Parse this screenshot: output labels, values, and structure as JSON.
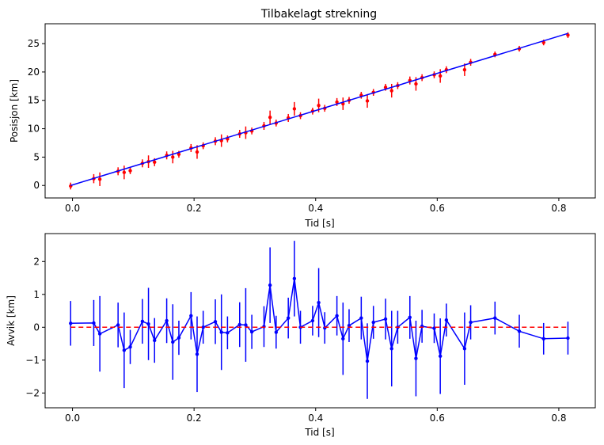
{
  "chart_data": [
    {
      "type": "scatter",
      "title": "Tilbakelagt strekning",
      "xlabel": "Tid [s]",
      "ylabel": "Posisjon [km]",
      "xlim": [
        -0.045,
        0.86
      ],
      "ylim": [
        -2.2,
        28.5
      ],
      "x_ticks": [
        0.0,
        0.2,
        0.4,
        0.6,
        0.8
      ],
      "x_tick_labels": [
        "0.0",
        "0.2",
        "0.4",
        "0.6",
        "0.8"
      ],
      "y_ticks": [
        0,
        5,
        10,
        15,
        20,
        25
      ],
      "y_tick_labels": [
        "0",
        "5",
        "10",
        "15",
        "20",
        "25"
      ],
      "grid": false,
      "colors": {
        "data": "#ff0000",
        "fit": "#0000ff"
      },
      "series": [
        {
          "kind": "errorbar",
          "x": [
            -0.003,
            0.035,
            0.045,
            0.075,
            0.085,
            0.095,
            0.115,
            0.125,
            0.135,
            0.155,
            0.165,
            0.175,
            0.195,
            0.205,
            0.215,
            0.235,
            0.245,
            0.255,
            0.275,
            0.285,
            0.295,
            0.315,
            0.325,
            0.335,
            0.355,
            0.365,
            0.375,
            0.395,
            0.405,
            0.415,
            0.435,
            0.445,
            0.455,
            0.475,
            0.485,
            0.495,
            0.515,
            0.525,
            0.535,
            0.555,
            0.565,
            0.575,
            0.595,
            0.605,
            0.615,
            0.645,
            0.655,
            0.695,
            0.735,
            0.775,
            0.815
          ],
          "y": [
            -0.1,
            1.2,
            1.1,
            2.5,
            2.3,
            2.6,
            3.9,
            4.2,
            4.1,
            5.3,
            5.0,
            5.5,
            6.6,
            5.9,
            7.0,
            7.8,
            7.9,
            8.2,
            9.1,
            9.3,
            9.6,
            10.5,
            12.0,
            11.0,
            11.9,
            13.5,
            12.3,
            13.1,
            14.1,
            13.6,
            14.7,
            14.4,
            15.0,
            15.9,
            14.9,
            16.4,
            17.3,
            16.7,
            17.6,
            18.5,
            17.9,
            19.0,
            19.5,
            19.3,
            20.4,
            20.4,
            21.7,
            23.1,
            24.1,
            25.2,
            26.5
          ],
          "yerr": [
            0.6,
            0.8,
            1.2,
            0.7,
            1.2,
            0.6,
            0.7,
            1.1,
            0.7,
            0.7,
            1.1,
            0.6,
            0.7,
            1.2,
            0.6,
            0.7,
            1.1,
            0.6,
            0.7,
            1.1,
            0.6,
            0.7,
            1.2,
            0.6,
            0.7,
            1.2,
            0.6,
            0.6,
            1.2,
            0.6,
            0.7,
            1.1,
            0.6,
            0.6,
            1.2,
            0.6,
            0.6,
            1.2,
            0.6,
            0.7,
            1.2,
            0.6,
            0.6,
            1.2,
            0.6,
            1.1,
            0.6,
            0.5,
            0.5,
            0.5,
            0.5
          ]
        },
        {
          "kind": "line",
          "x": [
            -0.003,
            0.815
          ],
          "y": [
            0.0,
            26.8
          ]
        }
      ]
    },
    {
      "type": "line",
      "title": "",
      "xlabel": "Tid [s]",
      "ylabel": "Avvik [km]",
      "xlim": [
        -0.045,
        0.86
      ],
      "ylim": [
        -2.45,
        2.85
      ],
      "x_ticks": [
        0.0,
        0.2,
        0.4,
        0.6,
        0.8
      ],
      "x_tick_labels": [
        "0.0",
        "0.2",
        "0.4",
        "0.6",
        "0.8"
      ],
      "y_ticks": [
        -2,
        -1,
        0,
        1,
        2
      ],
      "y_tick_labels": [
        "−2",
        "−1",
        "0",
        "1",
        "2"
      ],
      "grid": false,
      "colors": {
        "data": "#0000ff",
        "reference": "#ff0000"
      },
      "series": [
        {
          "kind": "errorbar-line",
          "x": [
            -0.003,
            0.035,
            0.045,
            0.075,
            0.085,
            0.095,
            0.115,
            0.125,
            0.135,
            0.155,
            0.165,
            0.175,
            0.195,
            0.205,
            0.215,
            0.235,
            0.245,
            0.255,
            0.275,
            0.285,
            0.295,
            0.315,
            0.325,
            0.335,
            0.355,
            0.365,
            0.375,
            0.395,
            0.405,
            0.415,
            0.435,
            0.445,
            0.455,
            0.475,
            0.485,
            0.495,
            0.515,
            0.525,
            0.535,
            0.555,
            0.565,
            0.575,
            0.595,
            0.605,
            0.615,
            0.645,
            0.655,
            0.695,
            0.735,
            0.775,
            0.815
          ],
          "y": [
            0.12,
            0.13,
            -0.2,
            0.07,
            -0.7,
            -0.6,
            0.18,
            0.1,
            -0.4,
            0.2,
            -0.45,
            -0.32,
            0.35,
            -0.82,
            0.0,
            0.17,
            -0.15,
            -0.17,
            0.08,
            0.07,
            -0.14,
            0.02,
            1.28,
            -0.15,
            0.28,
            1.48,
            0.0,
            0.2,
            0.75,
            -0.02,
            0.35,
            -0.35,
            0.05,
            0.28,
            -1.03,
            0.15,
            0.25,
            -0.65,
            0.0,
            0.3,
            -0.95,
            0.03,
            -0.03,
            -0.88,
            0.22,
            -0.65,
            0.15,
            0.28,
            -0.12,
            -0.35,
            -0.33
          ],
          "yerr": [
            0.68,
            0.7,
            1.15,
            0.68,
            1.15,
            0.52,
            0.68,
            1.1,
            0.68,
            0.68,
            1.15,
            0.52,
            0.72,
            1.15,
            0.5,
            0.68,
            1.15,
            0.5,
            0.68,
            1.12,
            0.52,
            0.62,
            1.15,
            0.5,
            0.62,
            1.15,
            0.5,
            0.45,
            1.05,
            0.48,
            0.6,
            1.1,
            0.5,
            0.65,
            1.15,
            0.5,
            0.62,
            1.15,
            0.5,
            0.65,
            1.15,
            0.5,
            0.45,
            1.15,
            0.5,
            1.1,
            0.52,
            0.5,
            0.5,
            0.48,
            0.5
          ]
        },
        {
          "kind": "dashed-line",
          "x": [
            -0.003,
            0.815
          ],
          "y": [
            0.0,
            0.0
          ]
        }
      ]
    }
  ]
}
